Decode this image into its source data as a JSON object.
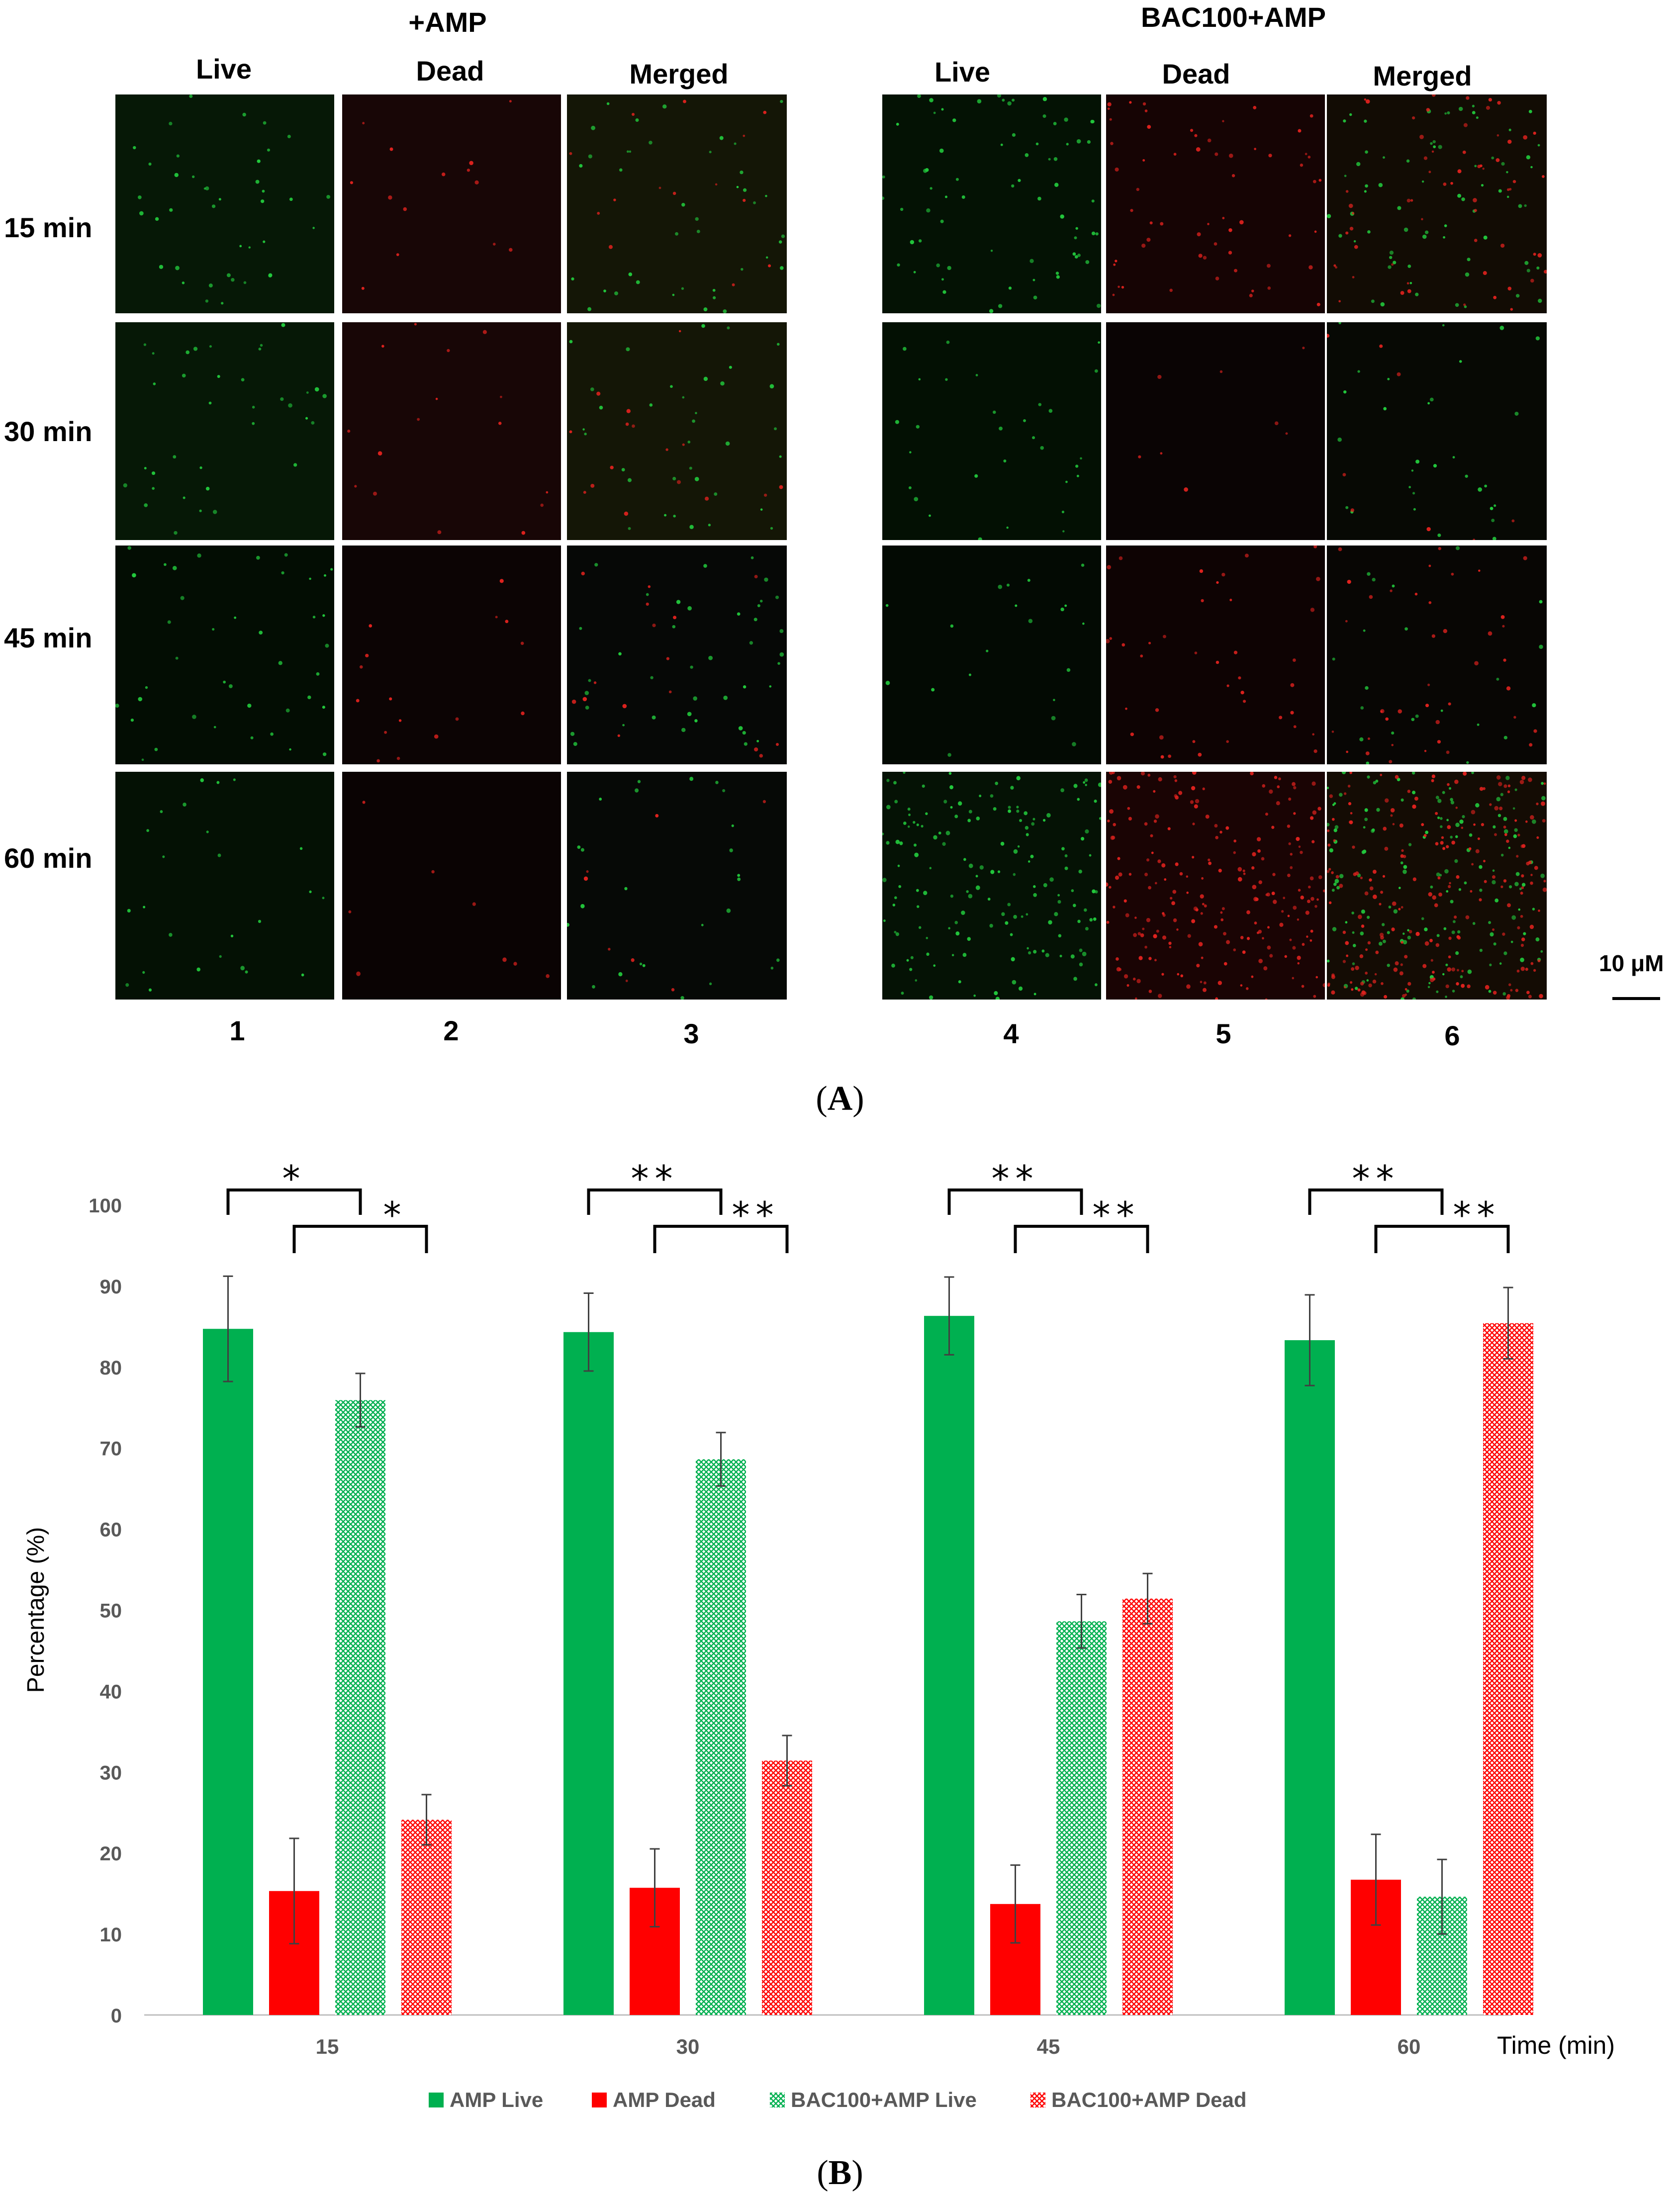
{
  "panel_a": {
    "groups": [
      {
        "title": "+AMP",
        "columns": [
          "Live",
          "Dead",
          "Merged"
        ],
        "column_numbers": [
          "1",
          "2",
          "3"
        ]
      },
      {
        "title": "BAC100+AMP",
        "columns": [
          "Live",
          "Dead",
          "Merged"
        ],
        "column_numbers": [
          "4",
          "5",
          "6"
        ]
      }
    ],
    "rows": [
      "15 min",
      "30 min",
      "45 min",
      "60 min"
    ],
    "scale_bar": "10 μM",
    "caption_open": "(",
    "caption_letter": "A",
    "caption_close": ")",
    "colors": {
      "live": "#22c83c",
      "dead": "#e0221e"
    }
  },
  "panel_b": {
    "caption_open": "(",
    "caption_letter": "B",
    "caption_close": ")"
  },
  "chart_data": {
    "type": "bar",
    "title": "",
    "xlabel": "Time (min)",
    "ylabel": "Percentage (%)",
    "ylim": [
      0,
      100
    ],
    "yticks": [
      0,
      10,
      20,
      30,
      40,
      50,
      60,
      70,
      80,
      90,
      100
    ],
    "categories": [
      "15",
      "30",
      "45",
      "60"
    ],
    "series": [
      {
        "name": "AMP Live",
        "values": [
          84.7,
          84.3,
          86.3,
          83.3
        ],
        "errors": [
          6.5,
          4.8,
          4.8,
          5.6
        ],
        "color": "#00b050",
        "pattern": "solid"
      },
      {
        "name": "AMP Dead",
        "values": [
          15.3,
          15.7,
          13.7,
          16.7
        ],
        "errors": [
          6.5,
          4.8,
          4.8,
          5.6
        ],
        "color": "#ff0000",
        "pattern": "solid"
      },
      {
        "name": "BAC100+AMP Live",
        "values": [
          75.9,
          68.6,
          48.6,
          14.6
        ],
        "errors": [
          3.3,
          3.3,
          3.3,
          4.6
        ],
        "color": "#00b050",
        "pattern": "crosshatch"
      },
      {
        "name": "BAC100+AMP Dead",
        "values": [
          24.1,
          31.4,
          51.4,
          85.4
        ],
        "errors": [
          3.1,
          3.1,
          3.1,
          4.4
        ],
        "color": "#ff0000",
        "pattern": "crosshatch"
      }
    ],
    "significance": [
      {
        "category": "15",
        "live_marker": "*",
        "dead_marker": "*"
      },
      {
        "category": "30",
        "live_marker": "**",
        "dead_marker": "**"
      },
      {
        "category": "45",
        "live_marker": "**",
        "dead_marker": "**"
      },
      {
        "category": "60",
        "live_marker": "**",
        "dead_marker": "**"
      }
    ],
    "legend_position": "bottom",
    "grid": false
  }
}
